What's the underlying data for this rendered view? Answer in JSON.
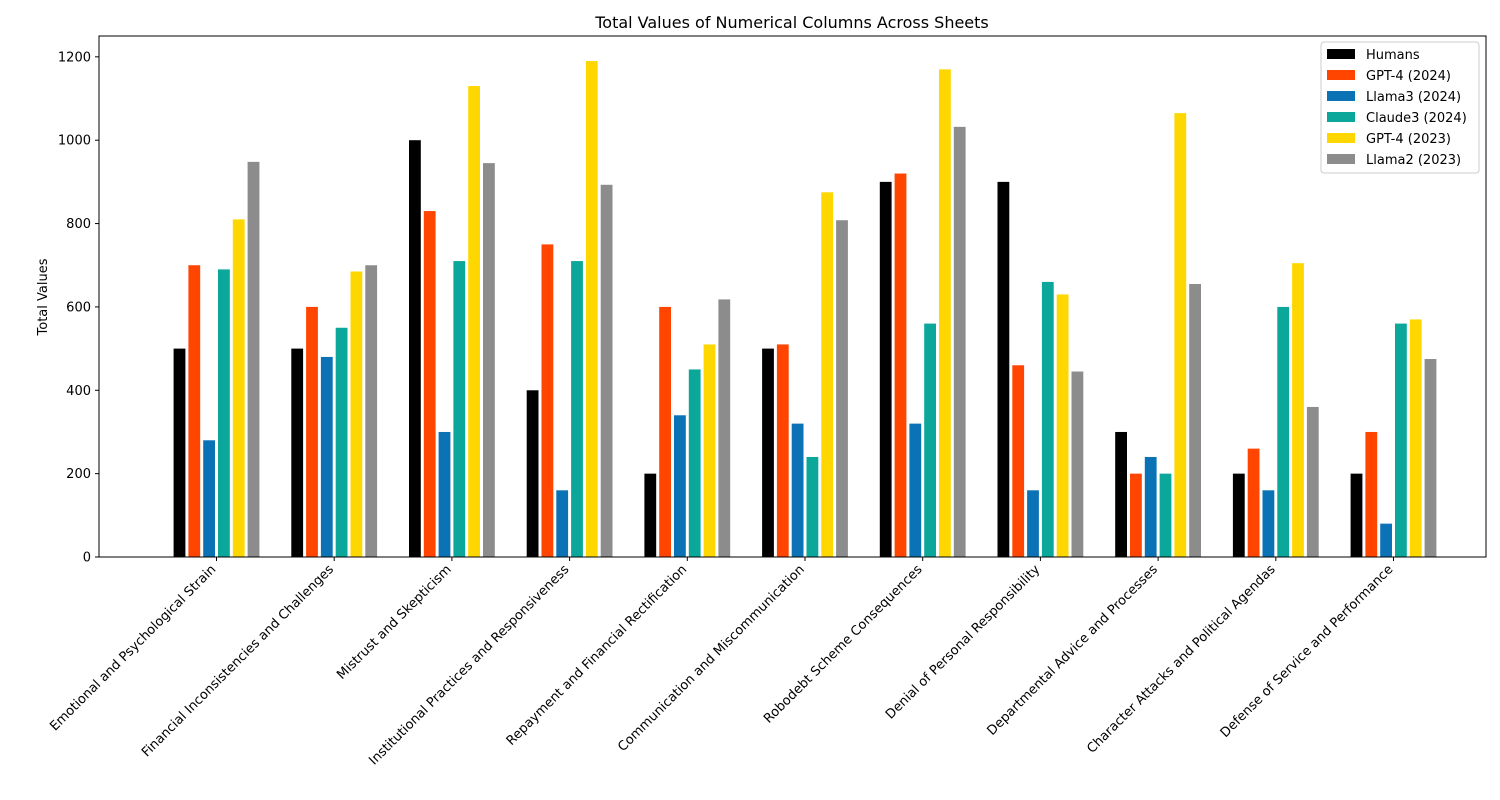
{
  "chart_data": {
    "type": "bar",
    "title": "Total Values of Numerical Columns Across Sheets",
    "xlabel": "",
    "ylabel": "Total Values",
    "ylim": [
      0,
      1250
    ],
    "yticks": [
      0,
      200,
      400,
      600,
      800,
      1000,
      1200
    ],
    "grid": false,
    "legend_position": "top-right",
    "categories": [
      "Emotional and Psychological Strain",
      "Financial Inconsistencies and Challenges",
      "Mistrust and Skepticism",
      "Institutional Practices and Responsiveness",
      "Repayment and Financial Rectification",
      "Communication and Miscommunication",
      "Robodebt Scheme Consequences",
      "Denial of Personal Responsibility",
      "Departmental Advice and Processes",
      "Character Attacks and Political Agendas",
      "Defense of Service and Performance"
    ],
    "series": [
      {
        "name": "Humans",
        "color": "#000000",
        "values": [
          500,
          500,
          1000,
          400,
          200,
          500,
          900,
          900,
          300,
          200,
          200
        ]
      },
      {
        "name": "GPT-4 (2024)",
        "color": "#ff4500",
        "values": [
          700,
          600,
          830,
          750,
          600,
          510,
          920,
          460,
          200,
          260,
          300
        ]
      },
      {
        "name": "Llama3 (2024)",
        "color": "#0a72b5",
        "values": [
          280,
          480,
          300,
          160,
          340,
          320,
          320,
          160,
          240,
          160,
          80
        ]
      },
      {
        "name": "Claude3 (2024)",
        "color": "#0aa79a",
        "values": [
          690,
          550,
          710,
          710,
          450,
          240,
          560,
          660,
          200,
          600,
          560
        ]
      },
      {
        "name": "GPT-4 (2023)",
        "color": "#ffd700",
        "values": [
          810,
          685,
          1130,
          1190,
          510,
          875,
          1170,
          630,
          1065,
          705,
          570
        ]
      },
      {
        "name": "Llama2 (2023)",
        "color": "#8c8c8c",
        "values": [
          948,
          700,
          945,
          893,
          618,
          808,
          1032,
          445,
          655,
          360,
          475
        ]
      }
    ]
  }
}
